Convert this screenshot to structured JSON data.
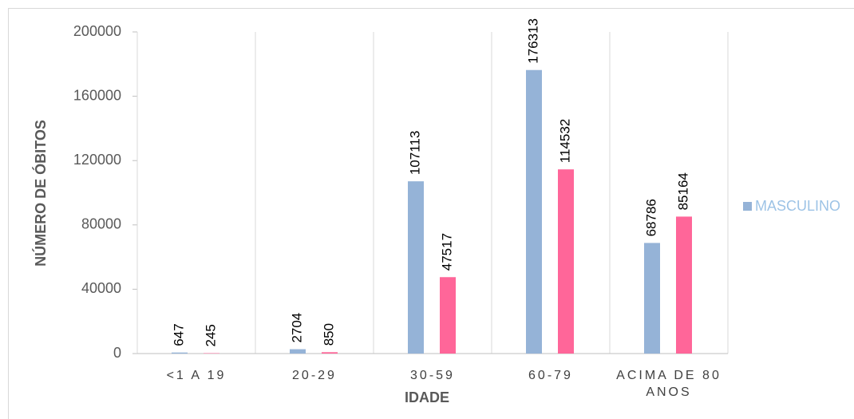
{
  "chart_data": {
    "type": "bar",
    "x_label": "IDADE",
    "y_label": "NÚMERO DE ÓBITOS",
    "categories": [
      "<1 A 19",
      "20-29",
      "30-59",
      "60-79",
      "ACIMA DE 80 ANOS"
    ],
    "series": [
      {
        "name": "MASCULINO",
        "color": "#95b3d7",
        "values": [
          647,
          2704,
          107113,
          176313,
          68786
        ]
      },
      {
        "color": "#ff6699",
        "values": [
          245,
          850,
          47517,
          114532,
          85164
        ]
      }
    ],
    "ylim": [
      0,
      200000
    ],
    "yticks": [
      0,
      40000,
      80000,
      120000,
      160000,
      200000
    ],
    "grid": true,
    "legend": "right"
  }
}
